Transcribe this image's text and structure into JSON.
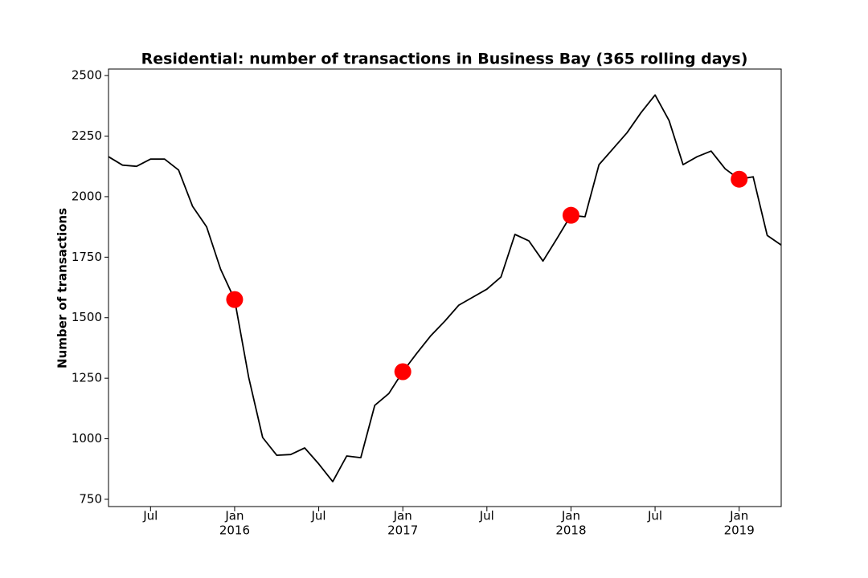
{
  "chart_data": {
    "type": "line",
    "title": "Residential: number of transactions in Business Bay (365 rolling days)",
    "y_label": "Number of transactions",
    "x": [
      "2015-04",
      "2015-05",
      "2015-06",
      "2015-07",
      "2015-08",
      "2015-09",
      "2015-10",
      "2015-11",
      "2015-12",
      "2016-01",
      "2016-02",
      "2016-03",
      "2016-04",
      "2016-05",
      "2016-06",
      "2016-07",
      "2016-08",
      "2016-09",
      "2016-10",
      "2016-11",
      "2016-12",
      "2017-01",
      "2017-02",
      "2017-03",
      "2017-04",
      "2017-05",
      "2017-06",
      "2017-07",
      "2017-08",
      "2017-09",
      "2017-10",
      "2017-11",
      "2017-12",
      "2018-01",
      "2018-02",
      "2018-03",
      "2018-04",
      "2018-05",
      "2018-06",
      "2018-07",
      "2018-08",
      "2018-09",
      "2018-10",
      "2018-11",
      "2018-12",
      "2019-01",
      "2019-02",
      "2019-03",
      "2019-04"
    ],
    "values": [
      2165,
      2130,
      2125,
      2155,
      2155,
      2110,
      1960,
      1875,
      1700,
      1575,
      1254,
      1005,
      932,
      935,
      962,
      896,
      823,
      929,
      922,
      1138,
      1187,
      1277,
      1353,
      1426,
      1486,
      1552,
      1585,
      1618,
      1668,
      1844,
      1817,
      1734,
      1827,
      1923,
      1917,
      2132,
      2198,
      2264,
      2347,
      2420,
      2314,
      2132,
      2165,
      2188,
      2115,
      2072,
      2082,
      1840,
      1800
    ],
    "color": "#000000",
    "markers": {
      "x": [
        "2016-01",
        "2017-01",
        "2018-01",
        "2019-01"
      ],
      "values": [
        1575,
        1277,
        1923,
        2072
      ],
      "color": "#ff0000"
    },
    "xlim": [
      "2015-04",
      "2019-04"
    ],
    "xticks": [
      {
        "value": "2015-07",
        "label": "Jul"
      },
      {
        "value": "2016-01",
        "label": "Jan",
        "year": "2016"
      },
      {
        "value": "2016-07",
        "label": "Jul"
      },
      {
        "value": "2017-01",
        "label": "Jan",
        "year": "2017"
      },
      {
        "value": "2017-07",
        "label": "Jul"
      },
      {
        "value": "2018-01",
        "label": "Jan",
        "year": "2018"
      },
      {
        "value": "2018-07",
        "label": "Jul"
      },
      {
        "value": "2019-01",
        "label": "Jan",
        "year": "2019"
      }
    ],
    "ylim": [
      720,
      2527
    ],
    "yticks": [
      750,
      1000,
      1250,
      1500,
      1750,
      2000,
      2250,
      2500
    ],
    "grid": false
  }
}
